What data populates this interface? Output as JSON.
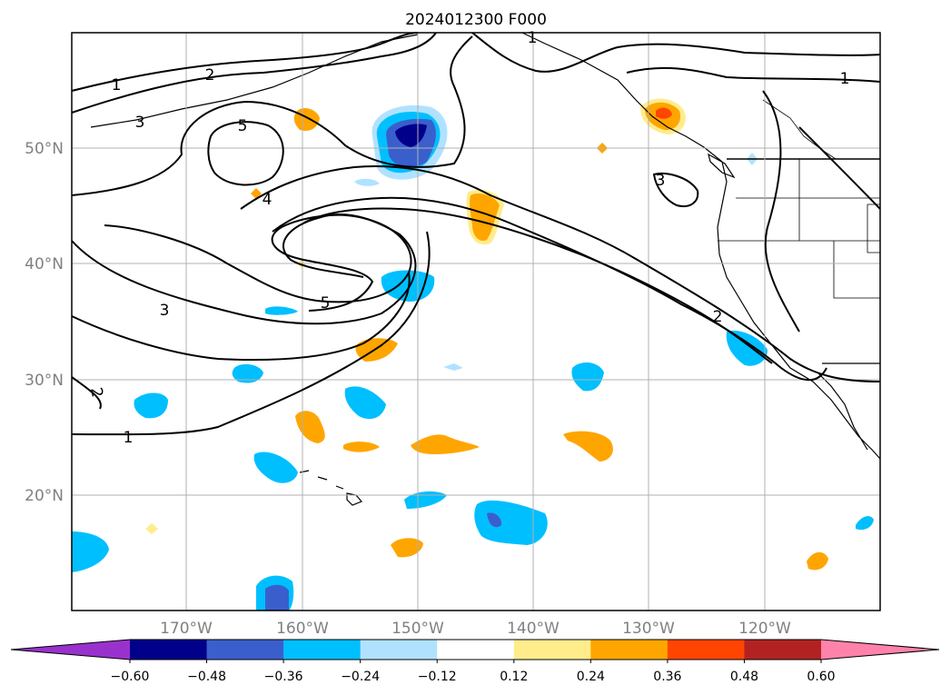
{
  "title": "2024012300 F000",
  "map": {
    "lon_labels": [
      "170°W",
      "160°W",
      "150°W",
      "140°W",
      "130°W",
      "120°W"
    ],
    "lat_labels": [
      "50°N",
      "40°N",
      "30°N",
      "20°N"
    ],
    "extent": {
      "lon": [
        -180,
        -110
      ],
      "lat": [
        10,
        60
      ]
    },
    "grid": true
  },
  "contour_labels": [
    "1",
    "1",
    "1",
    "1",
    "2",
    "2",
    "2",
    "3",
    "3",
    "3",
    "4",
    "5",
    "5"
  ],
  "colorbar": {
    "ticks": [
      "−0.60",
      "−0.48",
      "−0.36",
      "−0.24",
      "−0.12",
      "0.12",
      "0.24",
      "0.36",
      "0.48",
      "0.60"
    ],
    "colors": [
      "#9932CC",
      "#00008B",
      "#3A5FCD",
      "#00BFFF",
      "#B0E2FF",
      "#FFFFFF",
      "#FFEC8B",
      "#FFA500",
      "#FF4500",
      "#B22222",
      "#FF82AB"
    ]
  }
}
